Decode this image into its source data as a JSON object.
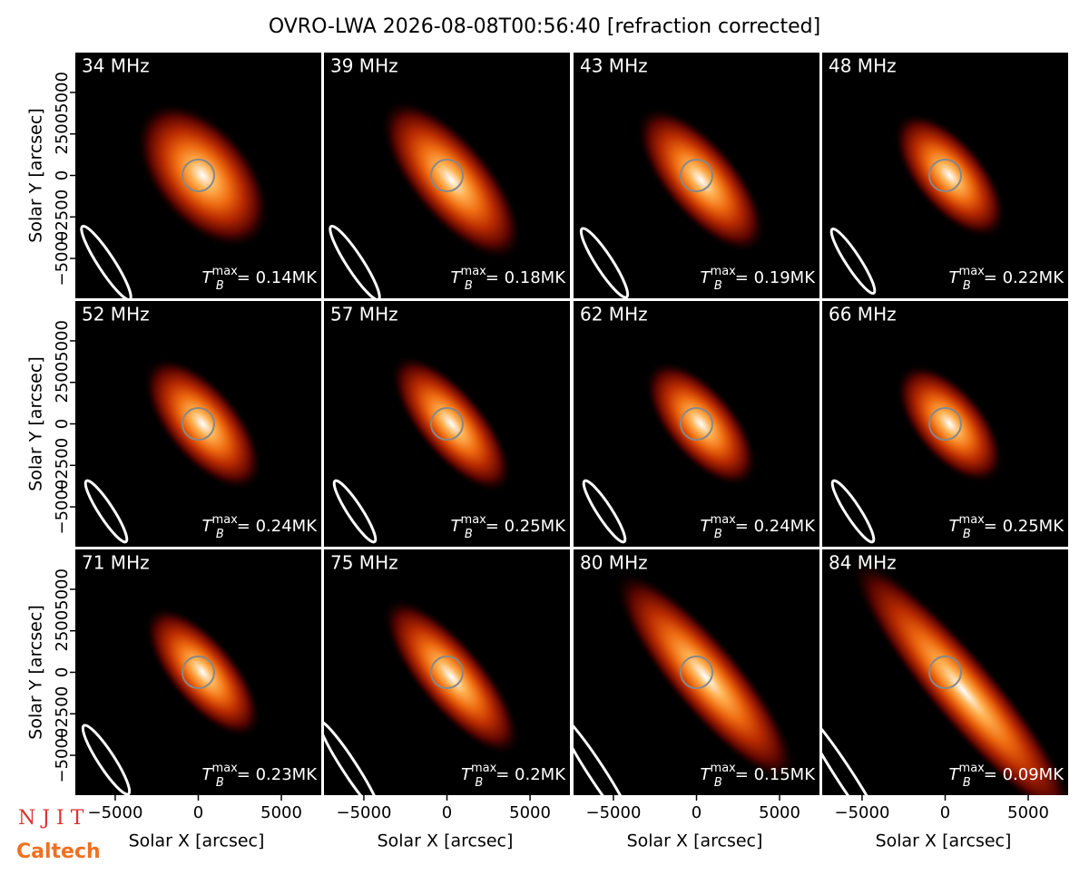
{
  "chart_data": {
    "type": "image-grid",
    "title": "OVRO-LWA 2026-08-08T00:56:40 [refraction corrected]",
    "xlabel": "Solar X [arcsec]",
    "ylabel": "Solar Y [arcsec]",
    "xlim": [
      -7400,
      7400
    ],
    "ylim": [
      -7400,
      7400
    ],
    "xticks": [
      {
        "value": -5000,
        "label": "−5000"
      },
      0,
      5000
    ],
    "yticks": [
      {
        "value": -5000,
        "label": "−5000"
      },
      {
        "value": -2500,
        "label": "−2500"
      },
      0,
      2500,
      5000
    ],
    "colormap": [
      "#000000",
      "#5a0500",
      "#b82a00",
      "#ee6a10",
      "#ffb050",
      "#ffffff"
    ],
    "tmax_symbol": {
      "base": "T",
      "sub": "B",
      "sup": "max"
    },
    "panels": [
      {
        "label": "34 MHz",
        "tmax_label": "= 0.14MK"
      },
      {
        "label": "39 MHz",
        "tmax_label": "= 0.18MK"
      },
      {
        "label": "43 MHz",
        "tmax_label": "= 0.19MK"
      },
      {
        "label": "48 MHz",
        "tmax_label": "= 0.22MK"
      },
      {
        "label": "52 MHz",
        "tmax_label": "= 0.24MK"
      },
      {
        "label": "57 MHz",
        "tmax_label": "= 0.25MK"
      },
      {
        "label": "62 MHz",
        "tmax_label": "= 0.24MK"
      },
      {
        "label": "66 MHz",
        "tmax_label": "= 0.25MK"
      },
      {
        "label": "71 MHz",
        "tmax_label": "= 0.23MK"
      },
      {
        "label": "75 MHz",
        "tmax_label": "= 0.2MK"
      },
      {
        "label": "80 MHz",
        "tmax_label": "= 0.15MK"
      },
      {
        "label": "84 MHz",
        "tmax_label": "= 0.09MK"
      }
    ],
    "logos": [
      "N J I T",
      "Caltech"
    ]
  }
}
